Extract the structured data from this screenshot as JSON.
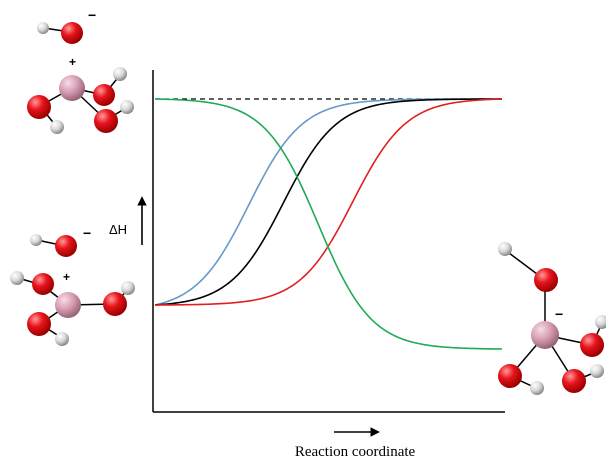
{
  "labels": {
    "y_axis": "ΔH",
    "x_axis": "Reaction coordinate"
  },
  "charges": {
    "minus": "−",
    "plus": "+"
  },
  "colors": {
    "oxygen": "#e8141c",
    "hydrogen": "#d8d8d8",
    "phosphorus": "#d8a0b4",
    "curve_blue": "#6699cc",
    "curve_black": "#000000",
    "curve_red": "#e02020",
    "curve_green": "#22aa55",
    "axis": "#000000"
  },
  "curves": [
    {
      "name": "blue-curve",
      "color_key": "curve_blue",
      "from": "low",
      "to": "high",
      "center": 0.27
    },
    {
      "name": "black-curve",
      "color_key": "curve_black",
      "from": "low",
      "to": "high",
      "center": 0.37
    },
    {
      "name": "red-curve",
      "color_key": "curve_red",
      "from": "low",
      "to": "high",
      "center": 0.57
    },
    {
      "name": "green-curve",
      "color_key": "curve_green",
      "from": "top",
      "to": "bottom",
      "center": 0.47
    }
  ]
}
